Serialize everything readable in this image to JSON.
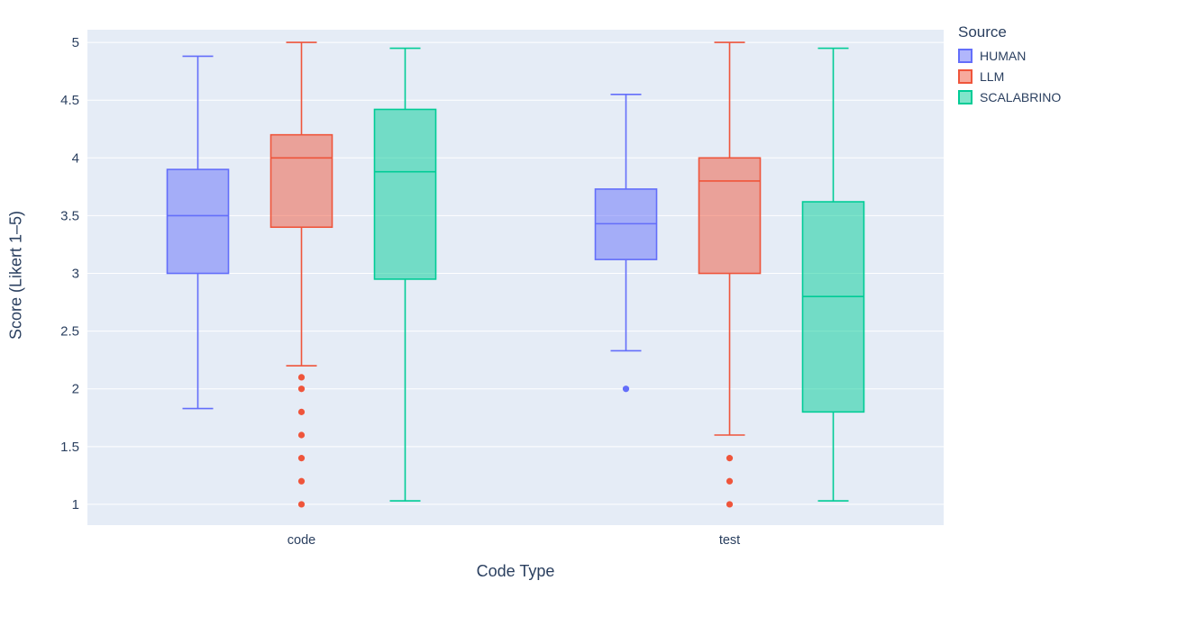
{
  "chart_data": {
    "type": "box",
    "title": "",
    "xlabel": "Code Type",
    "ylabel": "Score (Likert 1–5)",
    "legend_title": "Source",
    "legend_position": "top-right-outside",
    "categories": [
      "code",
      "test"
    ],
    "ylim": [
      0.82,
      5.11
    ],
    "yticks": [
      1,
      1.5,
      2,
      2.5,
      3,
      3.5,
      4,
      4.5,
      5
    ],
    "grid": true,
    "plot_bg_color": "#E5ECF6",
    "grid_color": "#FFFFFF",
    "text_color": "#2a3f5f",
    "series": [
      {
        "name": "HUMAN",
        "color": "#636EFA",
        "boxes": [
          {
            "category": "code",
            "low": 1.83,
            "q1": 3.0,
            "median": 3.5,
            "q3": 3.9,
            "high": 4.88,
            "outliers": []
          },
          {
            "category": "test",
            "low": 2.33,
            "q1": 3.12,
            "median": 3.43,
            "q3": 3.73,
            "high": 4.55,
            "outliers": [
              2.0
            ]
          }
        ]
      },
      {
        "name": "LLM",
        "color": "#EF553B",
        "boxes": [
          {
            "category": "code",
            "low": 2.2,
            "q1": 3.4,
            "median": 4.0,
            "q3": 4.2,
            "high": 5.0,
            "outliers": [
              2.1,
              2.0,
              1.8,
              1.6,
              1.4,
              1.2,
              1.0
            ]
          },
          {
            "category": "test",
            "low": 1.6,
            "q1": 3.0,
            "median": 3.8,
            "q3": 4.0,
            "high": 5.0,
            "outliers": [
              1.4,
              1.2,
              1.0
            ]
          }
        ]
      },
      {
        "name": "SCALABRINO",
        "color": "#00CC96",
        "boxes": [
          {
            "category": "code",
            "low": 1.03,
            "q1": 2.95,
            "median": 3.88,
            "q3": 4.42,
            "high": 4.95,
            "outliers": []
          },
          {
            "category": "test",
            "low": 1.03,
            "q1": 1.8,
            "median": 2.8,
            "q3": 3.62,
            "high": 4.95,
            "outliers": []
          }
        ]
      }
    ]
  }
}
